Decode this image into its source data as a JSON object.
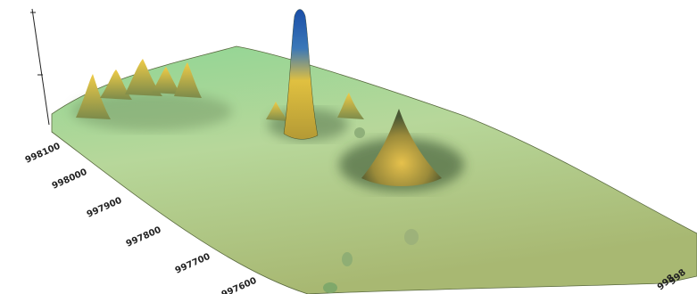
{
  "chart_data": {
    "type": "surface3d",
    "title": "",
    "xlabel": "",
    "ylabel": "",
    "zlabel": "",
    "y_ticks": [
      "998100",
      "998000",
      "997900",
      "997800",
      "997700",
      "997600"
    ],
    "x_ticks_partial": [
      "998",
      "998"
    ],
    "z_ticks": [
      "",
      ""
    ],
    "colormap": [
      "#7fd38a",
      "#a9c47e",
      "#e8c34a",
      "#1f4fa3"
    ],
    "peaks": [
      {
        "label": "tallest peak",
        "relative_height": 1.0
      },
      {
        "label": "right cone peak",
        "relative_height": 0.35
      },
      {
        "label": "left cluster peak A",
        "relative_height": 0.28
      },
      {
        "label": "left cluster peak B",
        "relative_height": 0.25
      },
      {
        "label": "left cluster peak C",
        "relative_height": 0.22
      },
      {
        "label": "left cluster peak D",
        "relative_height": 0.2
      },
      {
        "label": "left cluster peak E",
        "relative_height": 0.18
      },
      {
        "label": "small mid peak",
        "relative_height": 0.12
      },
      {
        "label": "small front bump A",
        "relative_height": 0.05
      },
      {
        "label": "small front bump B",
        "relative_height": 0.04
      }
    ]
  }
}
